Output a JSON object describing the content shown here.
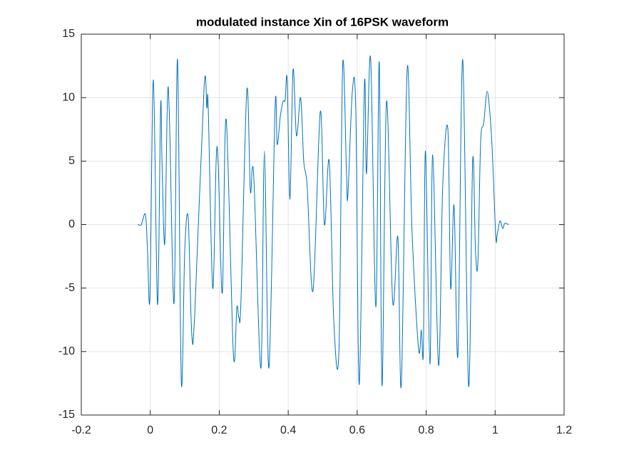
{
  "chart_data": {
    "type": "line",
    "title": "modulated instance Xin of 16PSK waveform",
    "xlim": [
      -0.2,
      1.2
    ],
    "xticks": [
      -0.2,
      0,
      0.2,
      0.4,
      0.6,
      0.8,
      1,
      1.2
    ],
    "ylim": [
      -15,
      15
    ],
    "yticks": [
      -15,
      -10,
      -5,
      0,
      5,
      10,
      15
    ],
    "grid": true,
    "series": [
      {
        "color": "#0072bd",
        "x": [
          -0.036,
          -0.026,
          -0.014,
          -0.008,
          -0.001,
          0.009,
          0.021,
          0.03,
          0.034,
          0.042,
          0.05,
          0.056,
          0.069,
          0.079,
          0.09,
          0.1,
          0.11,
          0.12,
          0.129,
          0.156,
          0.164,
          0.168,
          0.181,
          0.191,
          0.197,
          0.209,
          0.22,
          0.241,
          0.251,
          0.257,
          0.263,
          0.28,
          0.29,
          0.296,
          0.302,
          0.321,
          0.331,
          0.344,
          0.362,
          0.368,
          0.377,
          0.385,
          0.391,
          0.397,
          0.405,
          0.414,
          0.424,
          0.436,
          0.445,
          0.455,
          0.472,
          0.493,
          0.505,
          0.519,
          0.532,
          0.547,
          0.558,
          0.569,
          0.573,
          0.586,
          0.596,
          0.606,
          0.621,
          0.627,
          0.639,
          0.654,
          0.664,
          0.672,
          0.685,
          0.703,
          0.718,
          0.728,
          0.745,
          0.759,
          0.778,
          0.786,
          0.792,
          0.798,
          0.811,
          0.819,
          0.836,
          0.848,
          0.863,
          0.871,
          0.881,
          0.892,
          0.906,
          0.923,
          0.935,
          0.943,
          0.95,
          0.958,
          0.967,
          0.977,
          0.987,
          0.993,
          1.002,
          1.006,
          1.014,
          1.022,
          1.028,
          1.039
        ],
        "values": [
          0,
          0,
          0.8,
          -2,
          -5.7,
          11.4,
          -6.3,
          9.3,
          5,
          -1.5,
          10.1,
          8,
          -6.2,
          13,
          -12.4,
          -2,
          0.5,
          -8.5,
          -7,
          10.8,
          9.2,
          9.3,
          -5,
          5,
          4.8,
          -5.4,
          8.3,
          -10.2,
          -6.5,
          -7.3,
          -6,
          10.6,
          2.7,
          4.5,
          2.6,
          -11.3,
          5.8,
          -11.3,
          9.3,
          6.3,
          8.5,
          9.7,
          9.8,
          11.4,
          2,
          12.2,
          7,
          10,
          5,
          3,
          -5.2,
          8.9,
          0,
          5,
          -7.5,
          -10,
          12.6,
          4,
          2.3,
          10.5,
          9,
          -12.6,
          11,
          4,
          13.1,
          -6.5,
          12.8,
          -12.7,
          9.7,
          -6.1,
          -1,
          -12.6,
          12.3,
          -0.5,
          -9.8,
          -8.3,
          -9.9,
          5.8,
          -11,
          5.5,
          -11.1,
          3,
          7.5,
          -5,
          1.5,
          -10.3,
          13,
          -12.7,
          5.1,
          -2,
          -3,
          6.5,
          8,
          10.5,
          8,
          5,
          -1,
          -0.8,
          0.3,
          -0.3,
          0.1,
          0
        ]
      }
    ]
  }
}
